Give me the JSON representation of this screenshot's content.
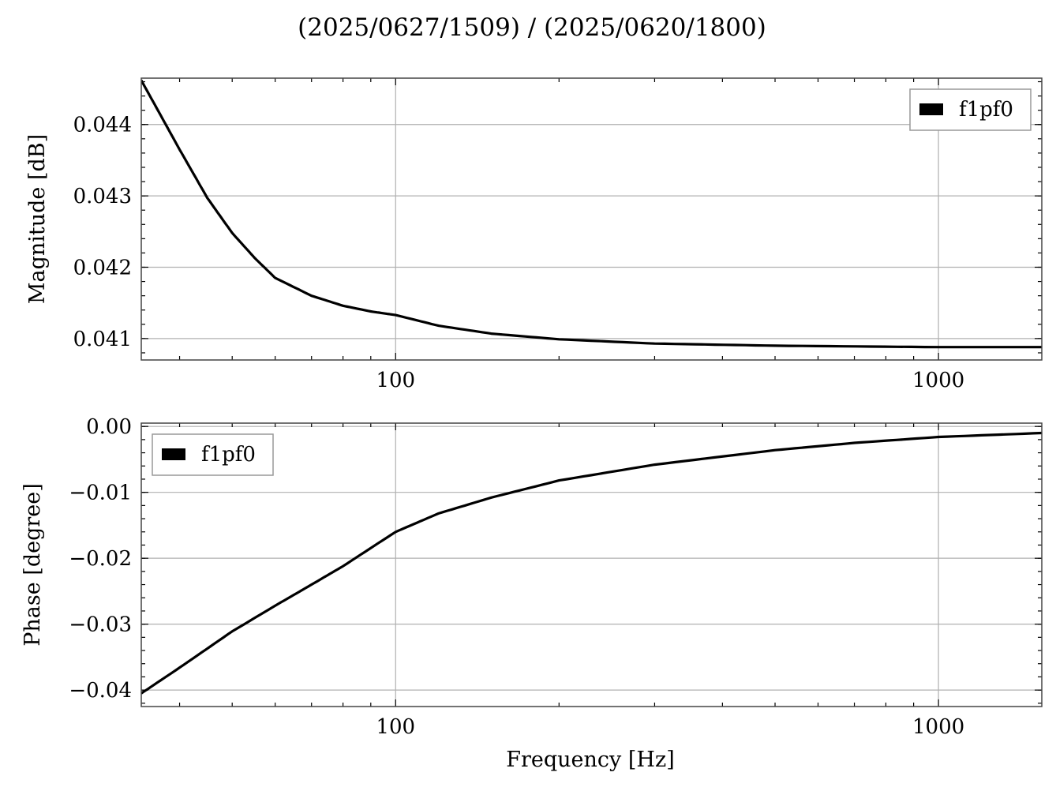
{
  "figure": {
    "title": "(2025/0627/1509) / (2025/0620/1800)",
    "xlabel": "Frequency [Hz]"
  },
  "chart_data": [
    {
      "type": "line",
      "ylabel": "Magnitude [dB]",
      "xscale": "log",
      "xlim": [
        34,
        1550
      ],
      "ylim": [
        0.0407,
        0.04465
      ],
      "xticks": [
        100,
        1000
      ],
      "xtick_labels": [
        "100",
        "1000"
      ],
      "yticks": [
        0.041,
        0.042,
        0.043,
        0.044
      ],
      "ytick_labels": [
        "0.041",
        "0.042",
        "0.043",
        "0.044"
      ],
      "grid": true,
      "legend": {
        "position": "upper right",
        "entries": [
          "f1pf0"
        ]
      },
      "series": [
        {
          "name": "f1pf0",
          "color": "#000000",
          "x": [
            34,
            40,
            45,
            50,
            55,
            60,
            70,
            80,
            90,
            100,
            120,
            150,
            200,
            300,
            500,
            1000,
            1550
          ],
          "y": [
            0.04462,
            0.04365,
            0.04297,
            0.04248,
            0.04213,
            0.04185,
            0.0416,
            0.04146,
            0.04138,
            0.04133,
            0.04118,
            0.04107,
            0.04099,
            0.04093,
            0.0409,
            0.04088,
            0.04088
          ]
        }
      ]
    },
    {
      "type": "line",
      "ylabel": "Phase [degree]",
      "xscale": "log",
      "xlim": [
        34,
        1550
      ],
      "ylim": [
        -0.0425,
        0.0005
      ],
      "xticks": [
        100,
        1000
      ],
      "xtick_labels": [
        "100",
        "1000"
      ],
      "yticks": [
        0.0,
        -0.01,
        -0.02,
        -0.03,
        -0.04
      ],
      "ytick_labels": [
        "0.00",
        "−0.01",
        "−0.02",
        "−0.03",
        "−0.04"
      ],
      "grid": true,
      "legend": {
        "position": "upper left",
        "entries": [
          "f1pf0"
        ]
      },
      "series": [
        {
          "name": "f1pf0",
          "color": "#000000",
          "x": [
            34,
            40,
            50,
            60,
            70,
            80,
            100,
            120,
            150,
            200,
            300,
            500,
            700,
            1000,
            1550
          ],
          "y": [
            -0.0405,
            -0.0366,
            -0.0311,
            -0.0272,
            -0.024,
            -0.0212,
            -0.016,
            -0.0132,
            -0.0108,
            -0.0082,
            -0.0058,
            -0.0036,
            -0.0025,
            -0.0016,
            -0.001
          ]
        }
      ]
    }
  ]
}
